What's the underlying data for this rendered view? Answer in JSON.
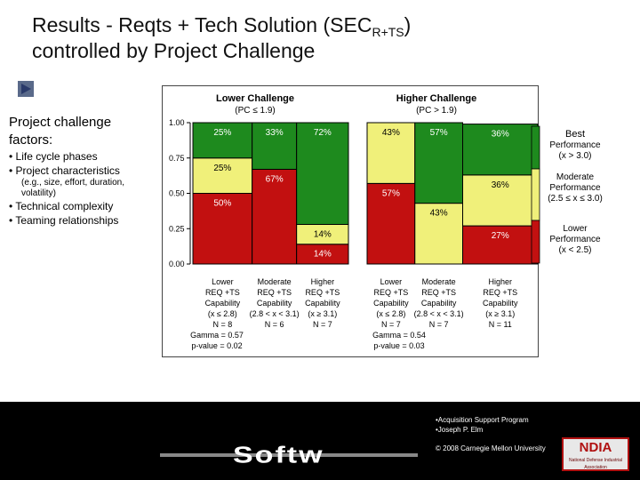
{
  "title": {
    "line1_pre": "Results - Reqts + Tech Solution (SEC",
    "line1_sub": "R+TS",
    "line1_post": ")",
    "line2": "controlled by Project Challenge"
  },
  "left_panel": {
    "heading_line1": "Project challenge",
    "heading_line2": "factors:",
    "items": [
      "• Life cycle phases",
      "• Project characteristics",
      "(e.g., size, effort, duration,",
      "volatility)",
      "• Technical complexity",
      "• Teaming relationships"
    ]
  },
  "legend": {
    "best": "Best Performance (x > 3.0)",
    "moderate": "Moderate Performance (2.5 ≤ x ≤ 3.0)",
    "lower": "Lower Performance (x < 2.5)"
  },
  "colors": {
    "best": "#1e8a1e",
    "moderate": "#f0f07a",
    "lower": "#c21010"
  },
  "chart_data": {
    "type": "mosaic-stacked-bar",
    "y_ticks": [
      "1.00",
      "0.75",
      "0.50",
      "0.25",
      "0.00"
    ],
    "ylim": [
      0,
      1
    ],
    "groups": [
      {
        "header": "Lower Challenge",
        "subheader": "(PC ≤ 1.9)",
        "gamma": "Gamma = 0.57",
        "pvalue": "p-value = 0.02",
        "bars": [
          {
            "label": [
              "Lower",
              "REQ +TS",
              "Capability",
              "(x ≤ 2.8)",
              "N = 8"
            ],
            "n": 8,
            "lower": 0.5,
            "moderate": 0.25,
            "best": 0.25,
            "lower_label": "50%",
            "moderate_label": "25%",
            "best_label": "25%"
          },
          {
            "label": [
              "Moderate",
              "REQ +TS",
              "Capability",
              "(2.8 < x < 3.1)",
              "N = 6"
            ],
            "n": 6,
            "lower": 0.67,
            "moderate": 0.0,
            "best": 0.33,
            "lower_label": "67%",
            "moderate_label": "",
            "best_label": "33%"
          },
          {
            "label": [
              "Higher",
              "REQ +TS",
              "Capability",
              "(x ≥ 3.1)",
              "N = 7"
            ],
            "n": 7,
            "lower": 0.14,
            "moderate": 0.14,
            "best": 0.72,
            "lower_label": "14%",
            "moderate_label": "14%",
            "best_label": "72%"
          }
        ]
      },
      {
        "header": "Higher Challenge",
        "subheader": "(PC > 1.9)",
        "gamma": "Gamma = 0.54",
        "pvalue": "p-value = 0.03",
        "bars": [
          {
            "label": [
              "Lower",
              "REQ +TS",
              "Capability",
              "(x ≤ 2.8)",
              "N = 7"
            ],
            "n": 7,
            "lower": 0.57,
            "moderate": 0.43,
            "best": 0.0,
            "lower_label": "57%",
            "moderate_label": "43%",
            "best_label": ""
          },
          {
            "label": [
              "Moderate",
              "REQ +TS",
              "Capability",
              "(2.8 < x < 3.1)",
              "N = 7"
            ],
            "n": 7,
            "lower": 0.0,
            "moderate": 0.43,
            "best": 0.57,
            "lower_label": "",
            "moderate_label": "43%",
            "best_label": "57%"
          },
          {
            "label": [
              "Higher",
              "REQ +TS",
              "Capability",
              "(x ≥ 3.1)",
              "N = 11"
            ],
            "n": 11,
            "lower": 0.27,
            "moderate": 0.36,
            "best": 0.36,
            "lower_label": "27%",
            "moderate_label": "36%",
            "best_label": "36%"
          }
        ]
      }
    ]
  },
  "footer": {
    "line1": "•Acquisition Support Program",
    "line2": "•Joseph P. Elm",
    "copyright": "© 2008 Carnegie Mellon University",
    "brand_text": "Softw",
    "logo_text": "NDIA",
    "logo_sub": "National Defense Industrial Association"
  }
}
